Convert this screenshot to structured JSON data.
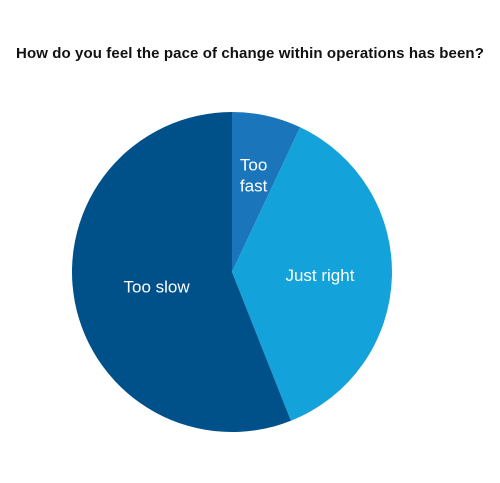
{
  "chart_data": {
    "type": "pie",
    "title": "How do you feel the pace of change within operations has been?",
    "slices": [
      {
        "label": "Too fast",
        "label_lines": [
          "Too",
          "fast"
        ],
        "value": 7,
        "color": "#1b75bb"
      },
      {
        "label": "Just right",
        "label_lines": [
          "Just right"
        ],
        "value": 37,
        "color": "#13a2d9"
      },
      {
        "label": "Too slow",
        "label_lines": [
          "Too slow"
        ],
        "value": 56,
        "color": "#00518a"
      }
    ],
    "start_angle_deg": 0,
    "direction": "clockwise",
    "legend": "none"
  }
}
